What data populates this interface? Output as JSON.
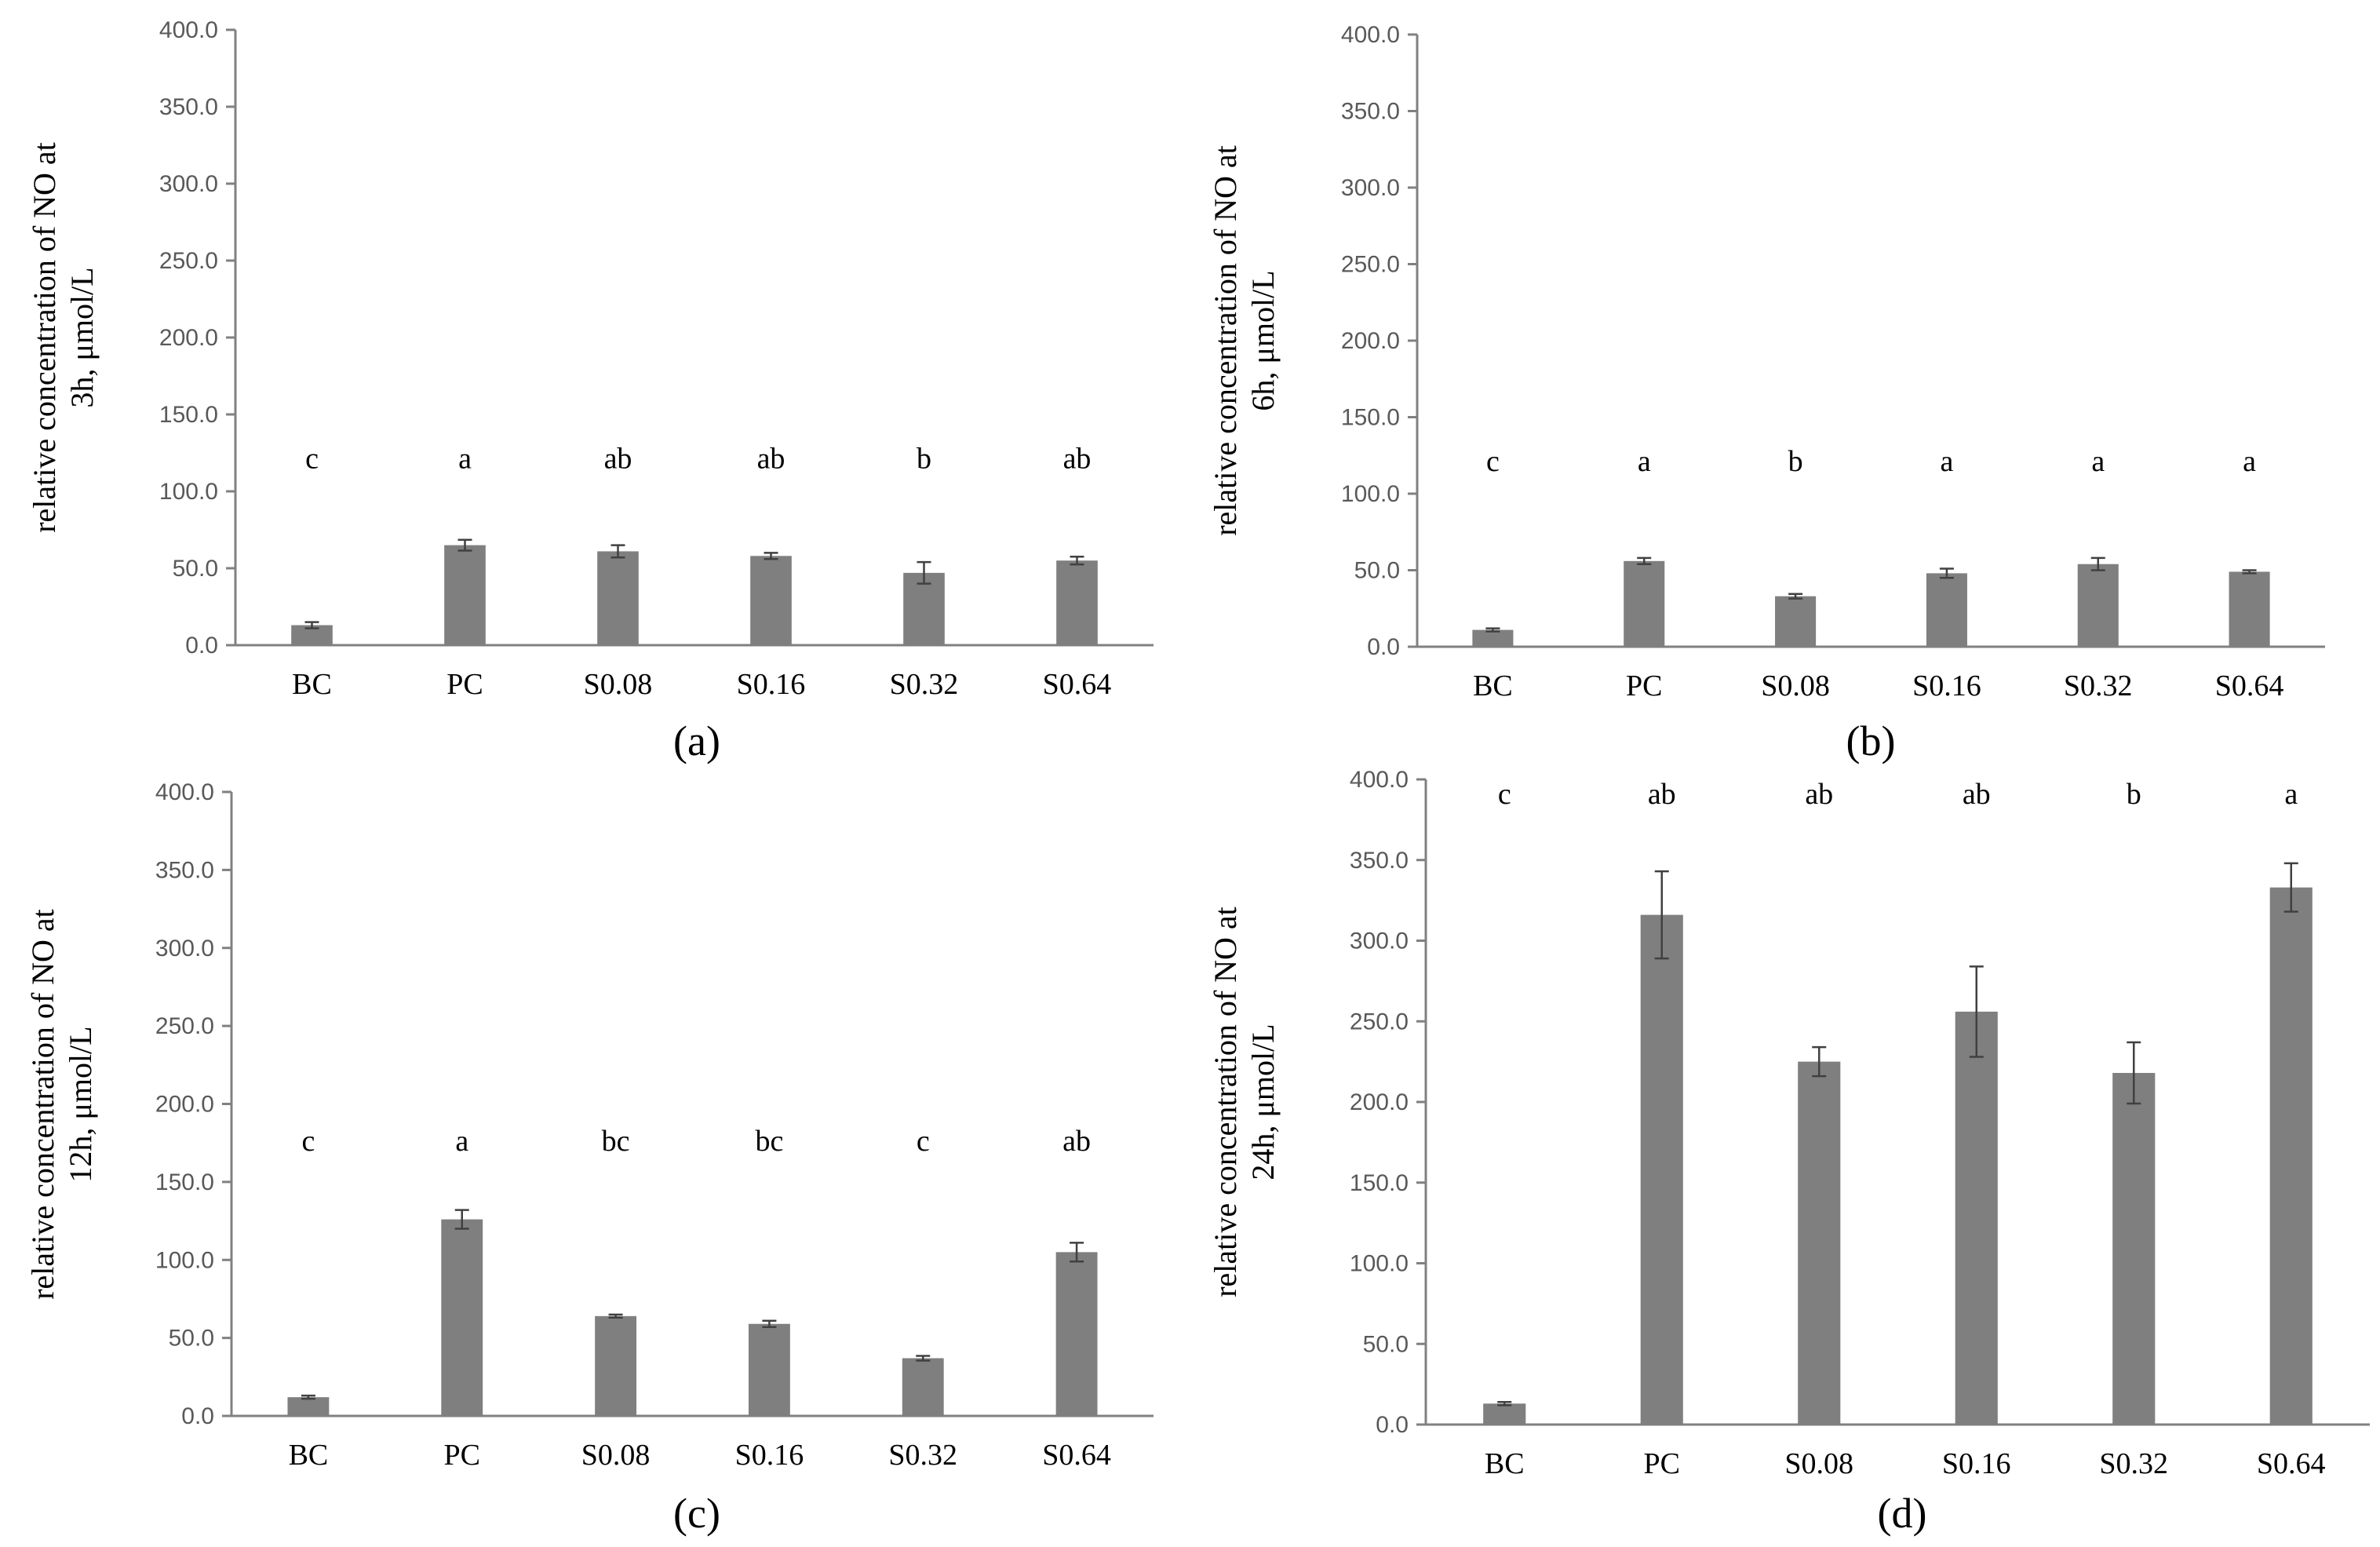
{
  "colors": {
    "bar": "#7f7f7f",
    "axis": "#808080",
    "error": "#404040"
  },
  "chart_data": [
    {
      "type": "bar",
      "panel_label": "(a)",
      "ylabel_lines": [
        "relative concentration of NO at",
        "3h, μmol/L"
      ],
      "ylim": [
        0,
        400
      ],
      "yticks": [
        "0.0",
        "50.0",
        "100.0",
        "150.0",
        "200.0",
        "250.0",
        "300.0",
        "350.0",
        "400.0"
      ],
      "categories": [
        "BC",
        "PC",
        "S0.08",
        "S0.16",
        "S0.32",
        "S0.64"
      ],
      "values": [
        13,
        65,
        61,
        58,
        47,
        55
      ],
      "errors": [
        2,
        3.5,
        4,
        2,
        7,
        2.5
      ],
      "significance": [
        "c",
        "a",
        "ab",
        "ab",
        "b",
        "ab"
      ],
      "significance_level": 115
    },
    {
      "type": "bar",
      "panel_label": "(b)",
      "ylabel_lines": [
        "relative concentration of NO at",
        "6h, μmol/L"
      ],
      "ylim": [
        0,
        400
      ],
      "yticks": [
        "0.0",
        "50.0",
        "100.0",
        "150.0",
        "200.0",
        "250.0",
        "300.0",
        "350.0",
        "400.0"
      ],
      "categories": [
        "BC",
        "PC",
        "S0.08",
        "S0.16",
        "S0.32",
        "S0.64"
      ],
      "values": [
        11,
        56,
        33,
        48,
        54,
        49
      ],
      "errors": [
        1,
        2,
        1.5,
        3,
        4,
        1
      ],
      "significance": [
        "c",
        "a",
        "b",
        "a",
        "a",
        "a"
      ],
      "significance_level": 115
    },
    {
      "type": "bar",
      "panel_label": "(c)",
      "ylabel_lines": [
        "relative concentration of NO at",
        "12h, μmol/L"
      ],
      "ylim": [
        0,
        400
      ],
      "yticks": [
        "0.0",
        "50.0",
        "100.0",
        "150.0",
        "200.0",
        "250.0",
        "300.0",
        "350.0",
        "400.0"
      ],
      "categories": [
        "BC",
        "PC",
        "S0.08",
        "S0.16",
        "S0.32",
        "S0.64"
      ],
      "values": [
        12,
        126,
        64,
        59,
        37,
        105
      ],
      "errors": [
        1,
        6,
        1,
        2,
        1.5,
        6
      ],
      "significance": [
        "c",
        "a",
        "bc",
        "bc",
        "c",
        "ab"
      ],
      "significance_level": 170
    },
    {
      "type": "bar",
      "panel_label": "(d)",
      "ylabel_lines": [
        "relative concentration of NO at",
        "24h, μmol/L"
      ],
      "ylim": [
        0,
        400
      ],
      "yticks": [
        "0.0",
        "50.0",
        "100.0",
        "150.0",
        "200.0",
        "250.0",
        "300.0",
        "350.0",
        "400.0"
      ],
      "categories": [
        "BC",
        "PC",
        "S0.08",
        "S0.16",
        "S0.32",
        "S0.64"
      ],
      "values": [
        13,
        316,
        225,
        256,
        218,
        333
      ],
      "errors": [
        1,
        27,
        9,
        28,
        19,
        15
      ],
      "significance": [
        "c",
        "ab",
        "ab",
        "ab",
        "b",
        "a"
      ],
      "significance_level": 385
    }
  ]
}
